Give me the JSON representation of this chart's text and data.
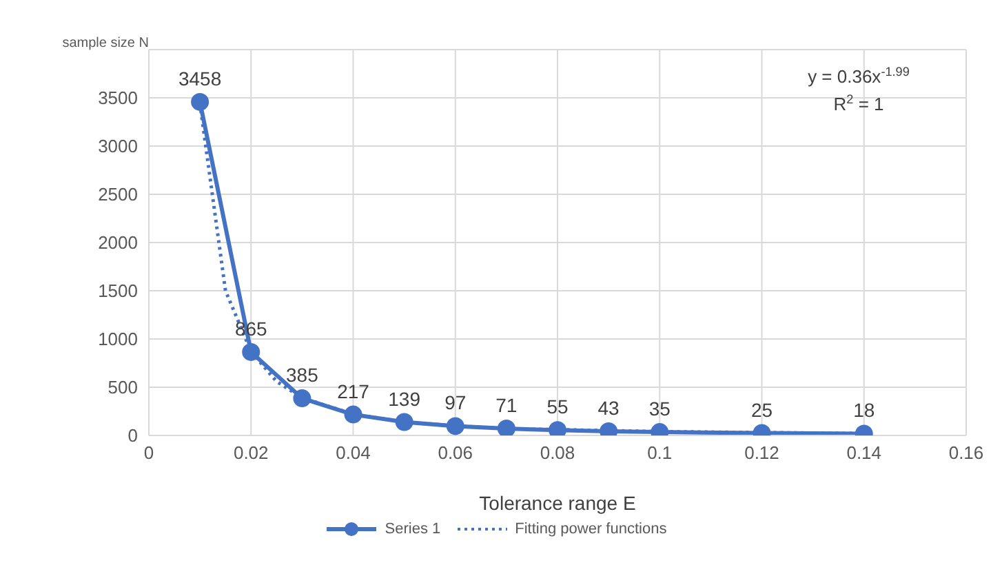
{
  "chart_data": {
    "type": "line",
    "xlabel": "Tolerance range E",
    "ylabel": "sample size N",
    "xlim": [
      0,
      0.16
    ],
    "xticks": [
      0,
      0.02,
      0.04,
      0.06,
      0.08,
      0.1,
      0.12,
      0.14,
      0.16
    ],
    "ylim": [
      0,
      4000
    ],
    "yticks": [
      0,
      500,
      1000,
      1500,
      2000,
      2500,
      3000,
      3500,
      {
        "value": 4000,
        "label": null
      }
    ],
    "grid": true,
    "legend": "bottom",
    "annotations": [
      "y = 0.36x$^{-1.99}$",
      "R$^{2}$ = 1"
    ],
    "series": [
      {
        "name": "Series 1",
        "color": "#4472c4",
        "marker": "circle",
        "line_style": "solid",
        "x": [
          0.01,
          0.02,
          0.03,
          0.04,
          0.05,
          0.06,
          0.07,
          0.08,
          0.09,
          0.1,
          0.12,
          0.14
        ],
        "values": [
          3458,
          865,
          385,
          217,
          139,
          97,
          71,
          55,
          43,
          35,
          25,
          18
        ],
        "value_labels": [
          "3458",
          "865",
          "385",
          "217",
          "139",
          "97",
          "71",
          "55",
          "43",
          "35",
          "25",
          "18"
        ]
      },
      {
        "name": "Fitting power functions",
        "type": "line",
        "color": "#4472c4",
        "marker": "none",
        "line_style": "dotted",
        "x": [
          0.01,
          0.015,
          0.02,
          0.025,
          0.03,
          0.04,
          0.05,
          0.06,
          0.07,
          0.08,
          0.1,
          0.12,
          0.14
        ],
        "values": [
          3440,
          1500,
          870,
          560,
          390,
          220,
          140,
          100,
          70,
          60,
          40,
          30,
          20
        ]
      }
    ]
  }
}
